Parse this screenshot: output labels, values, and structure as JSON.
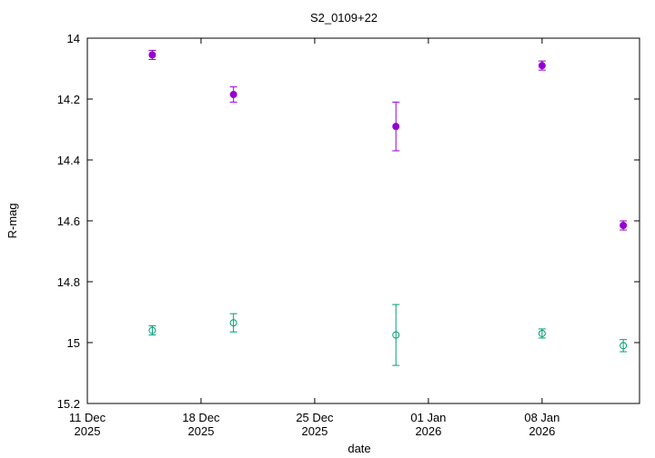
{
  "chart_data": {
    "type": "scatter",
    "title": "S2_0109+22",
    "x_label": "date",
    "y_label": "R-mag",
    "x": [
      "2025-12-15",
      "2025-12-20",
      "2025-12-30",
      "2026-01-08",
      "2026-01-13"
    ],
    "series": [
      {
        "color": "#9400d3",
        "marker": "filled-circle",
        "values": [
          14.055,
          14.185,
          14.29,
          14.09,
          14.615
        ],
        "errors": [
          0.015,
          0.025,
          0.08,
          0.015,
          0.015
        ]
      },
      {
        "color": "#009e73",
        "marker": "open-circle",
        "values": [
          14.96,
          14.935,
          14.975,
          14.97,
          15.01
        ],
        "errors": [
          0.015,
          0.03,
          0.1,
          0.015,
          0.02
        ]
      }
    ],
    "xlim": [
      "2025-12-11",
      "2026-01-14"
    ],
    "xticks": [
      {
        "value": "2025-12-11",
        "label": "11 Dec 2025"
      },
      {
        "value": "2025-12-18",
        "label": "18 Dec 2025"
      },
      {
        "value": "2025-12-25",
        "label": "25 Dec 2025"
      },
      {
        "value": "2026-01-01",
        "label": "01 Jan 2026"
      },
      {
        "value": "2026-01-08",
        "label": "08 Jan 2026"
      }
    ],
    "ylim": [
      15.2,
      14
    ],
    "yticks": [
      14,
      14.2,
      14.4,
      14.6,
      14.8,
      15,
      15.2
    ],
    "grid": false
  }
}
